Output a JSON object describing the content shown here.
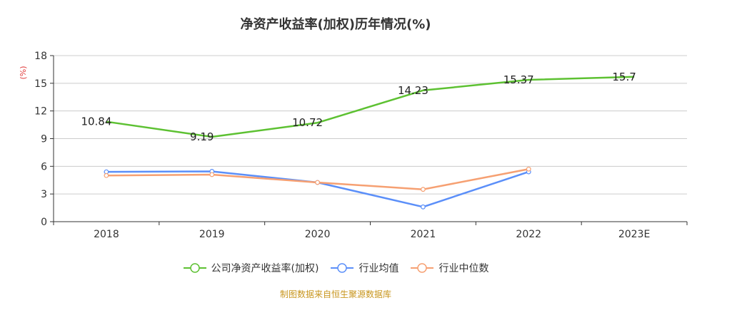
{
  "chart_data": {
    "type": "line",
    "title": "净资产收益率(加权)历年情况(%)",
    "ylabel": "(%)",
    "categories": [
      "2018",
      "2019",
      "2020",
      "2021",
      "2022",
      "2023E"
    ],
    "ylim": [
      0,
      18
    ],
    "yticks": [
      0,
      3,
      6,
      9,
      12,
      15,
      18
    ],
    "grid": true,
    "legend_position": "bottom",
    "series": [
      {
        "name": "公司净资产收益率(加权)",
        "color": "#5dc132",
        "values": [
          10.84,
          9.19,
          10.72,
          14.23,
          15.37,
          15.7
        ],
        "labels": [
          "10.84",
          "9.19",
          "10.72",
          "14.23",
          "15.37",
          "15.7"
        ],
        "show_labels": true
      },
      {
        "name": "行业均值",
        "color": "#5b8ff9",
        "values": [
          5.4,
          5.45,
          4.25,
          1.6,
          5.4,
          null
        ],
        "show_labels": false
      },
      {
        "name": "行业中位数",
        "color": "#f6a072",
        "values": [
          5.0,
          5.1,
          4.25,
          3.5,
          5.7,
          null
        ],
        "show_labels": false
      }
    ]
  },
  "source_note": "制图数据来自恒生聚源数据库"
}
